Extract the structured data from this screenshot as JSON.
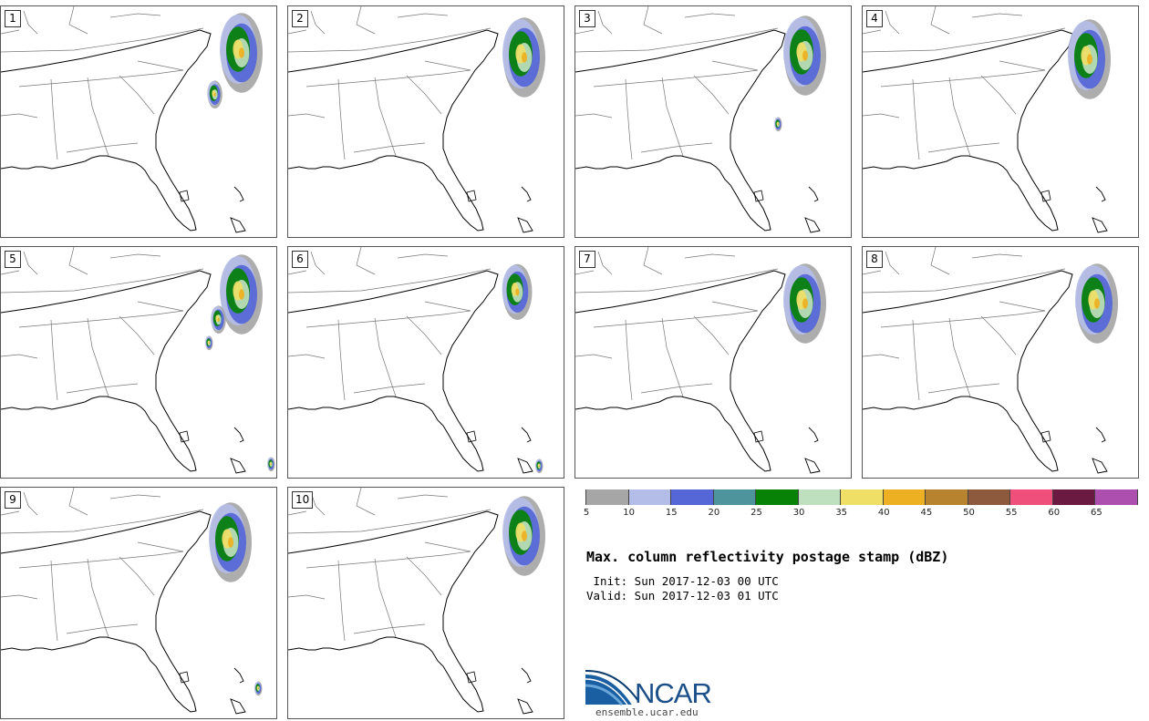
{
  "panels": [
    {
      "label": "1",
      "storms": [
        [
          262,
          55,
          "large"
        ],
        [
          234,
          102,
          "small"
        ]
      ]
    },
    {
      "label": "2",
      "storms": [
        [
          572,
          60,
          "large"
        ]
      ]
    },
    {
      "label": "3",
      "storms": [
        [
          880,
          58,
          "large"
        ],
        [
          852,
          135,
          "tiny"
        ]
      ]
    },
    {
      "label": "4",
      "storms": [
        [
          1192,
          62,
          "large"
        ]
      ]
    },
    {
      "label": "5",
      "storms": [
        [
          262,
          320,
          "large"
        ],
        [
          238,
          349,
          "small"
        ],
        [
          228,
          375,
          "tiny"
        ],
        [
          296,
          508,
          "tiny"
        ]
      ]
    },
    {
      "label": "6",
      "storms": [
        [
          565,
          318,
          "medium"
        ],
        [
          590,
          510,
          "tiny"
        ]
      ]
    },
    {
      "label": "7",
      "storms": [
        [
          880,
          330,
          "large"
        ]
      ]
    },
    {
      "label": "8",
      "storms": [
        [
          1200,
          330,
          "large"
        ]
      ]
    },
    {
      "label": "9",
      "storms": [
        [
          250,
          592,
          "large"
        ],
        [
          282,
          754,
          "tiny"
        ]
      ]
    },
    {
      "label": "10",
      "storms": [
        [
          572,
          585,
          "large"
        ]
      ]
    }
  ],
  "colorbar": {
    "colors": [
      "#a6a6a6",
      "#b4bde8",
      "#5566d6",
      "#4e949c",
      "#078207",
      "#bfe0bf",
      "#efdf66",
      "#eeb023",
      "#b8832f",
      "#8e5a3e",
      "#ee4f7b",
      "#6a1a40",
      "#ad4fae"
    ],
    "ticks": [
      "5",
      "10",
      "15",
      "20",
      "25",
      "30",
      "35",
      "40",
      "45",
      "50",
      "55",
      "60",
      "65"
    ]
  },
  "title": "Max. column reflectivity postage stamp (dBZ)",
  "init": " Init: Sun 2017-12-03 00 UTC",
  "valid": "Valid: Sun 2017-12-03 01 UTC",
  "logo": {
    "name": "NCAR",
    "url": "ensemble.ucar.edu"
  }
}
